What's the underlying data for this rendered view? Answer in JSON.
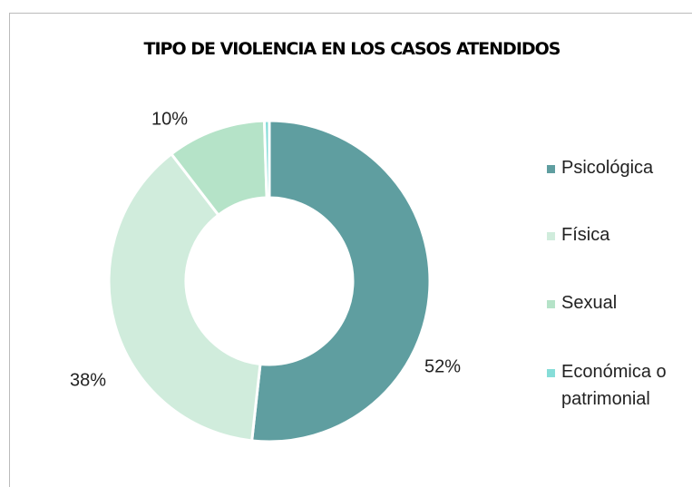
{
  "chart_data": {
    "type": "pie",
    "title": "TIPO DE VIOLENCIA EN LOS CASOS ATENDIDOS",
    "categories": [
      "Psicológica",
      "Física",
      "Sexual",
      "Económica o patrimonial"
    ],
    "values": [
      52,
      38,
      10,
      0.5
    ],
    "value_labels": [
      "52%",
      "38%",
      "10%",
      null
    ],
    "colors": [
      "#5f9ea0",
      "#d0ecdc",
      "#b5e3c8",
      "#86ddd8"
    ],
    "legend": "right"
  }
}
